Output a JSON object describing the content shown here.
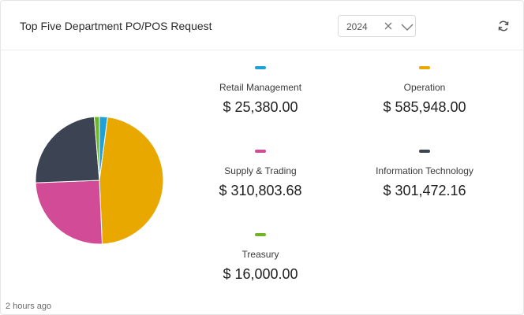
{
  "header": {
    "title": "Top Five Department PO/POS Request",
    "year": "2024"
  },
  "icons": {
    "clear": "close-icon",
    "dropdown": "chevron-down-icon",
    "refresh": "refresh-icon"
  },
  "chart_data": {
    "type": "pie",
    "title": "",
    "slices": [
      {
        "label": "Retail Management",
        "value": 25380.0,
        "display": "$ 25,380.00",
        "color": "#1da1d6"
      },
      {
        "label": "Operation",
        "value": 585948.0,
        "display": "$ 585,948.00",
        "color": "#e9a800"
      },
      {
        "label": "Supply & Trading",
        "value": 310803.68,
        "display": "$ 310,803.68",
        "color": "#d24b97"
      },
      {
        "label": "Information Technology",
        "value": 301472.16,
        "display": "$ 301,472.16",
        "color": "#3c4454"
      },
      {
        "label": "Treasury",
        "value": 16000.0,
        "display": "$ 16,000.00",
        "color": "#6fb526"
      }
    ]
  },
  "footer": {
    "timestamp": "2 hours ago"
  }
}
